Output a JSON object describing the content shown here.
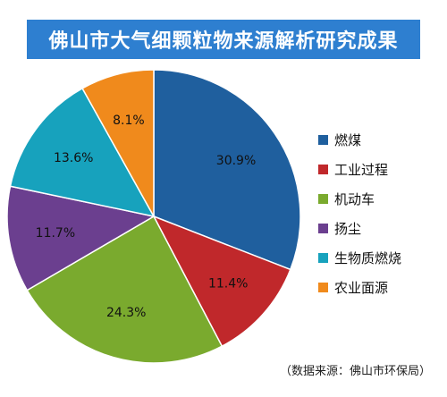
{
  "title": "佛山市大气细颗粒物来源解析研究成果",
  "source_note": "（数据来源：佛山市环保局）",
  "chart_data": {
    "type": "pie",
    "categories": [
      "燃煤",
      "工业过程",
      "机动车",
      "扬尘",
      "生物质燃烧",
      "农业面源"
    ],
    "values": [
      30.9,
      11.4,
      24.3,
      11.7,
      13.6,
      8.1
    ],
    "value_labels": [
      "30.9%",
      "11.4%",
      "24.3%",
      "11.7%",
      "13.6%",
      "8.1%"
    ],
    "colors": [
      "#1f5f9e",
      "#c0282b",
      "#7aaa2e",
      "#6b3f8f",
      "#17a2bd",
      "#f08a1c"
    ],
    "legend_position": "right",
    "start": "top, clockwise"
  }
}
